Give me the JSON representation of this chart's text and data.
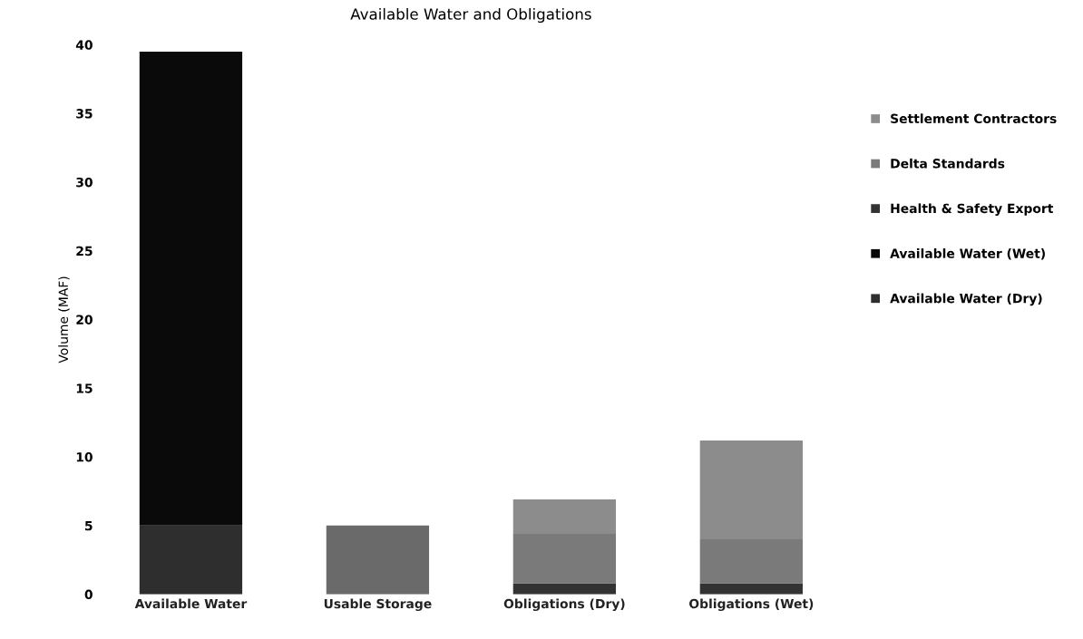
{
  "chart_data": {
    "type": "bar",
    "title": "Available Water and Obligations",
    "ylabel": "Volume (MAF)",
    "categories": [
      "Available Water",
      "Usable Storage",
      "Obligations (Dry)",
      "Obligations (Wet)"
    ],
    "stacked": true,
    "series": [
      {
        "name": "Available Water (Dry)",
        "color": "#2e2e2e",
        "values": [
          5,
          null,
          null,
          null
        ]
      },
      {
        "name": "Available Water (Wet)",
        "color": "#0a0a0a",
        "values": [
          34.5,
          null,
          null,
          null
        ]
      },
      {
        "color": "#6a6a6a",
        "values": [
          null,
          5,
          null,
          null
        ]
      },
      {
        "name": "Health & Safety Export",
        "color": "#333333",
        "values": [
          null,
          null,
          0.8,
          0.8
        ]
      },
      {
        "name": "Delta Standards",
        "color": "#7a7a7a",
        "values": [
          null,
          null,
          3.6,
          3.2
        ]
      },
      {
        "name": "Settlement Contractors",
        "color": "#8c8c8c",
        "values": [
          null,
          null,
          2.5,
          7.2
        ]
      }
    ],
    "ylim": [
      0,
      40
    ],
    "yticks": [
      0,
      5,
      10,
      15,
      20,
      25,
      30,
      35,
      40
    ],
    "grid": false,
    "legend": "right"
  }
}
